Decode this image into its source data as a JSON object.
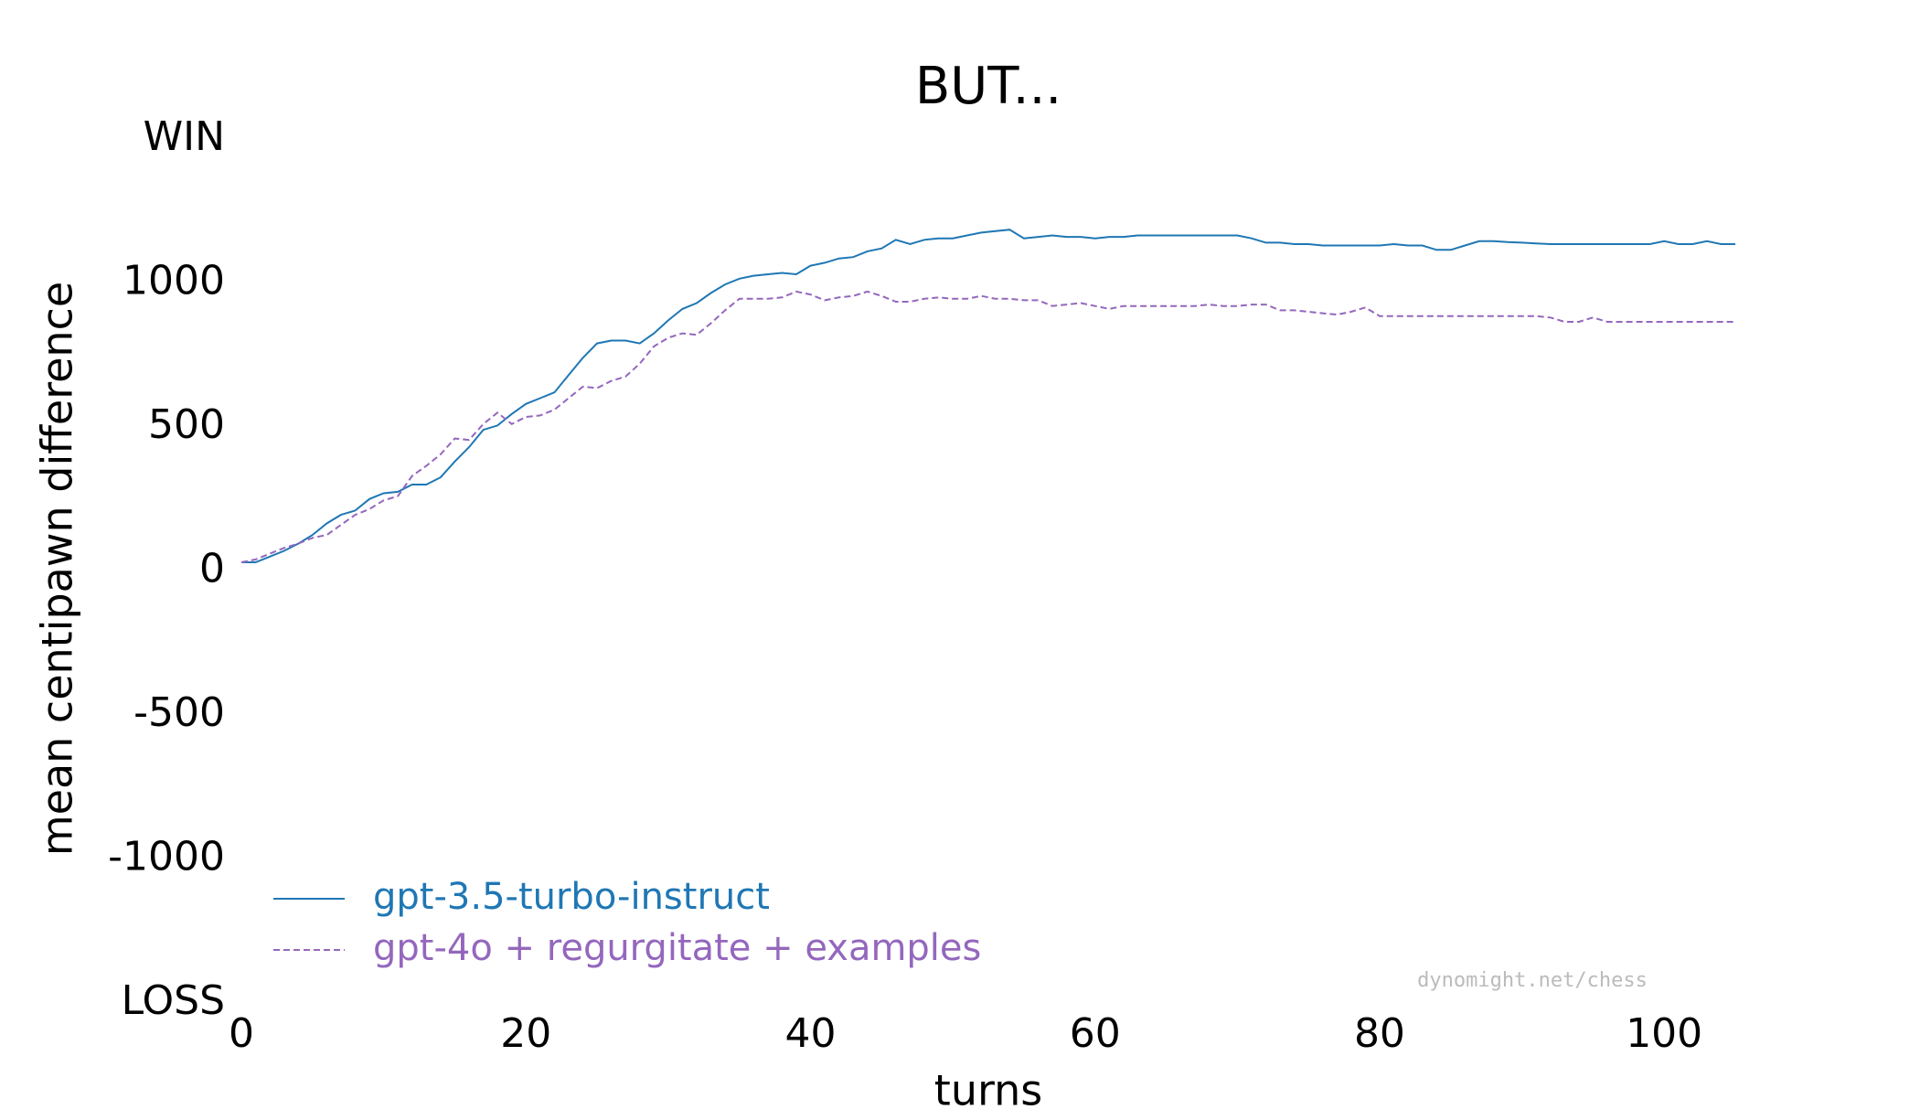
{
  "chart_data": {
    "type": "line",
    "title": "BUT...",
    "xlabel": "turns",
    "ylabel": "mean centipawn difference",
    "x": [
      0,
      1,
      2,
      3,
      4,
      5,
      6,
      7,
      8,
      9,
      10,
      11,
      12,
      13,
      14,
      15,
      16,
      17,
      18,
      19,
      20,
      21,
      22,
      23,
      24,
      25,
      26,
      27,
      28,
      29,
      30,
      31,
      32,
      33,
      34,
      35,
      36,
      37,
      38,
      39,
      40,
      41,
      42,
      43,
      44,
      45,
      46,
      47,
      48,
      49,
      50,
      51,
      52,
      53,
      54,
      55,
      56,
      57,
      58,
      59,
      60,
      61,
      62,
      63,
      64,
      65,
      66,
      67,
      68,
      69,
      70,
      71,
      72,
      73,
      74,
      75,
      76,
      77,
      78,
      79,
      80,
      81,
      82,
      83,
      84,
      85,
      86,
      87,
      88,
      89,
      90,
      91,
      92,
      93,
      94,
      95,
      96,
      97,
      98,
      99,
      100,
      101,
      102,
      103,
      104,
      105
    ],
    "series": [
      {
        "name": "gpt-3.5-turbo-instruct",
        "color": "#1f77b4",
        "dash": false,
        "values": [
          30,
          30,
          50,
          70,
          95,
          125,
          165,
          195,
          210,
          250,
          270,
          275,
          300,
          300,
          325,
          380,
          430,
          490,
          505,
          545,
          580,
          600,
          620,
          680,
          740,
          790,
          800,
          800,
          790,
          825,
          870,
          910,
          930,
          965,
          995,
          1015,
          1025,
          1030,
          1035,
          1030,
          1060,
          1070,
          1085,
          1090,
          1110,
          1120,
          1150,
          1135,
          1150,
          1155,
          1155,
          1165,
          1175,
          1180,
          1185,
          1155,
          1160,
          1165,
          1160,
          1160,
          1155,
          1160,
          1160,
          1165,
          1165,
          1165,
          1165,
          1165,
          1165,
          1165,
          1165,
          1155,
          1140,
          1140,
          1135,
          1135,
          1130,
          1130,
          1130,
          1130,
          1130,
          1135,
          1130,
          1130,
          1115,
          1115,
          1130,
          1145,
          1145,
          1142,
          1140,
          1137,
          1135,
          1135,
          1135,
          1135,
          1135,
          1135,
          1135,
          1135,
          1145,
          1135,
          1135,
          1145,
          1135,
          1135
        ]
      },
      {
        "name": "gpt-4o + regurgitate + examples",
        "color": "#9467bd",
        "dash": true,
        "values": [
          30,
          40,
          60,
          80,
          95,
          115,
          125,
          160,
          195,
          215,
          245,
          260,
          330,
          365,
          405,
          460,
          455,
          510,
          550,
          510,
          535,
          540,
          560,
          600,
          640,
          635,
          660,
          675,
          720,
          780,
          810,
          825,
          820,
          860,
          905,
          945,
          945,
          945,
          950,
          970,
          960,
          940,
          950,
          955,
          970,
          955,
          935,
          935,
          945,
          950,
          945,
          945,
          955,
          945,
          945,
          940,
          940,
          920,
          925,
          930,
          920,
          910,
          920,
          920,
          920,
          920,
          920,
          920,
          925,
          920,
          920,
          925,
          925,
          905,
          905,
          900,
          895,
          890,
          900,
          915,
          885,
          885,
          885,
          885,
          885,
          885,
          885,
          885,
          885,
          885,
          885,
          885,
          880,
          865,
          865,
          880,
          865,
          865,
          865,
          865,
          865,
          865,
          865,
          865,
          865,
          865
        ]
      }
    ],
    "xlim": [
      0,
      105
    ],
    "xticks": [
      0,
      20,
      40,
      60,
      80,
      100
    ],
    "ylim": [
      -1500,
      1500
    ],
    "yticks": [
      {
        "value": -1500,
        "label": "LOSS"
      },
      -1000,
      -500,
      0,
      500,
      1000,
      {
        "value": 1500,
        "label": "WIN"
      }
    ],
    "grid": false,
    "legend": "lower left",
    "annotation": "dynomight.net/chess"
  }
}
